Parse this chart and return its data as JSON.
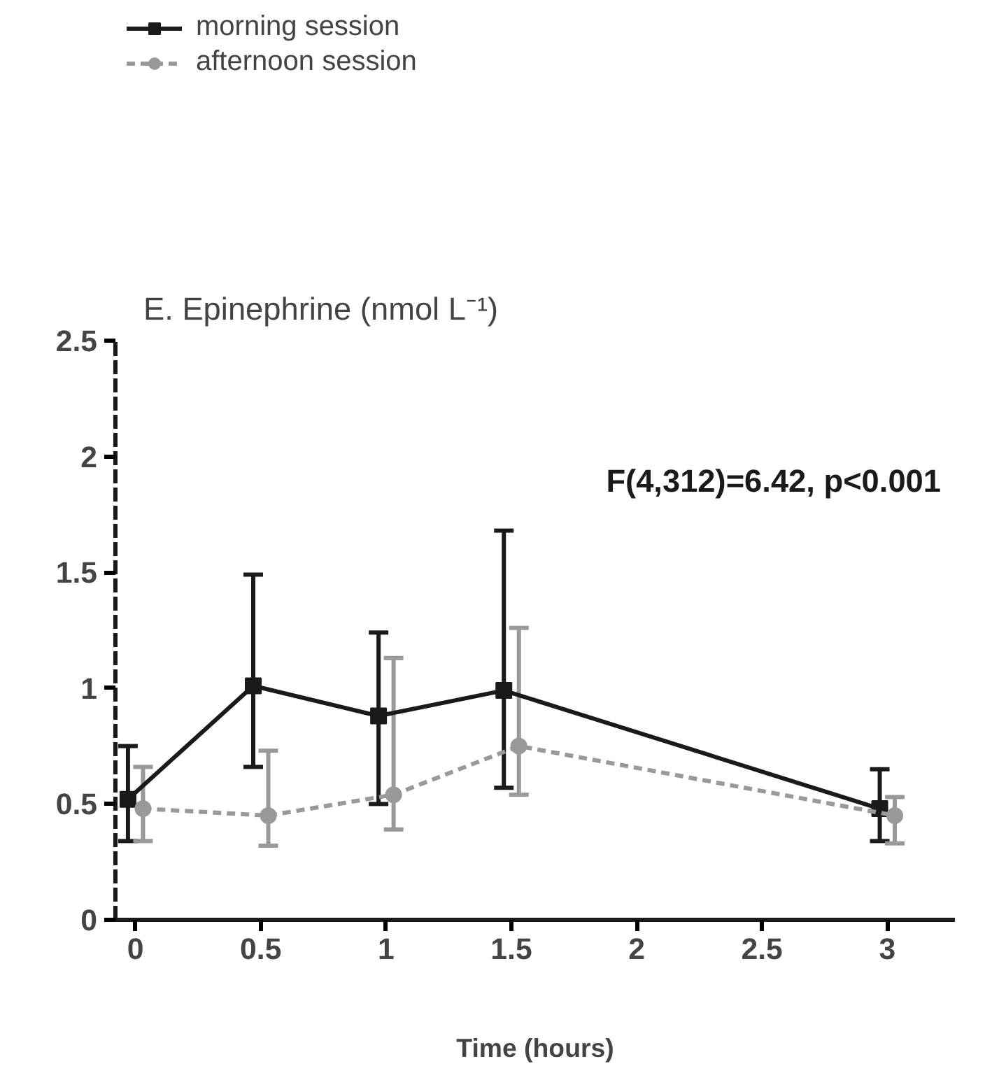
{
  "chart_data": {
    "type": "line",
    "title": "E. Epinephrine (nmol L⁻¹)",
    "xlabel": "Time (hours)",
    "xlim": [
      -0.08,
      3.27
    ],
    "ylim": [
      0,
      2.5
    ],
    "xticks": [
      0,
      0.5,
      1,
      1.5,
      2,
      2.5,
      3
    ],
    "yticks": [
      0,
      0.5,
      1,
      1.5,
      2,
      2.5
    ],
    "grid": false,
    "legend": "top left",
    "annotations": [
      "F(4,312)=6.42, p<0.001"
    ],
    "series": [
      {
        "name": "morning session",
        "color": "#1a1a1a",
        "marker": "square",
        "line_style": "solid",
        "x": [
          -0.03,
          0.47,
          0.97,
          1.47,
          2.97
        ],
        "values": [
          0.52,
          1.01,
          0.88,
          0.99,
          0.48
        ],
        "errors": [
          [
            0.34,
            0.75
          ],
          [
            0.66,
            1.49
          ],
          [
            0.5,
            1.24
          ],
          [
            0.57,
            1.68
          ],
          [
            0.34,
            0.65
          ]
        ]
      },
      {
        "name": "afternoon session",
        "color": "#999999",
        "marker": "circle",
        "line_style": "dashed",
        "x": [
          0.03,
          0.53,
          1.03,
          1.53,
          3.03
        ],
        "values": [
          0.48,
          0.45,
          0.54,
          0.75,
          0.45
        ],
        "errors": [
          [
            0.34,
            0.66
          ],
          [
            0.32,
            0.73
          ],
          [
            0.39,
            1.13
          ],
          [
            0.54,
            1.26
          ],
          [
            0.33,
            0.53
          ]
        ]
      }
    ]
  }
}
